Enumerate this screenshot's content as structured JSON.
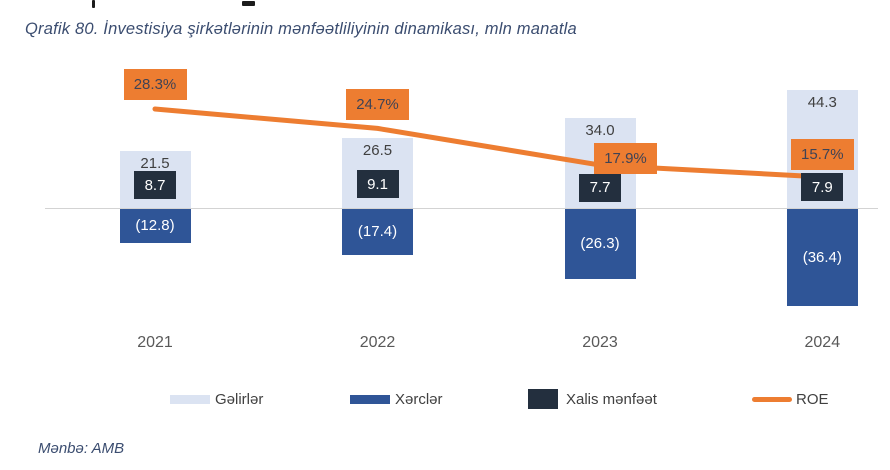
{
  "title": "Qrafik 80. İnvestisiya şirkətlərinin mənfəətliliyinin dinamikası, mln manatla",
  "source": "Mənbə: AMB",
  "colors": {
    "revenue": "#dbe3f2",
    "expense": "#2f5597",
    "net_profit": "#232f3e",
    "roe": "#ed7d31",
    "title_text": "#3b4d70",
    "value_label": "#404040",
    "year_label": "#595959",
    "axis": "#d3d3d3",
    "roe_label_text": "#3f4355"
  },
  "chart_data": {
    "type": "bar",
    "subtype": "combo bar + line, positive/negative stacked around zero axis",
    "title": "Qrafik 80. İnvestisiya şirkətlərinin mənfəətliliyinin dinamikası, mln manatla",
    "xlabel": "",
    "ylabel": "mln manatla",
    "grid": "off",
    "legend_position": "bottom",
    "categories": [
      "2021",
      "2022",
      "2023",
      "2024"
    ],
    "series": [
      {
        "name": "Gəlirlər",
        "type": "bar",
        "axis": "primary",
        "values": [
          21.5,
          26.5,
          34.0,
          44.3
        ],
        "labels": [
          "21.5",
          "26.5",
          "34.0",
          "44.3"
        ]
      },
      {
        "name": "Xərclər",
        "type": "bar",
        "axis": "primary",
        "values": [
          -12.8,
          -17.4,
          -26.3,
          -36.4
        ],
        "labels": [
          "(12.8)",
          "(17.4)",
          "(26.3)",
          "(36.4)"
        ]
      },
      {
        "name": "Xalis mənfəət",
        "type": "bar",
        "axis": "primary",
        "values": [
          8.7,
          9.1,
          7.7,
          7.9
        ],
        "labels": [
          "8.7",
          "9.1",
          "7.7",
          "7.9"
        ]
      },
      {
        "name": "ROE",
        "type": "line",
        "axis": "secondary",
        "unit": "%",
        "values": [
          28.3,
          24.7,
          17.9,
          15.7
        ],
        "labels": [
          "28.3%",
          "24.7%",
          "17.9%",
          "15.7%"
        ]
      }
    ],
    "legend": [
      "Gəlirlər",
      "Xərclər",
      "Xalis mənfəət",
      "ROE"
    ]
  }
}
